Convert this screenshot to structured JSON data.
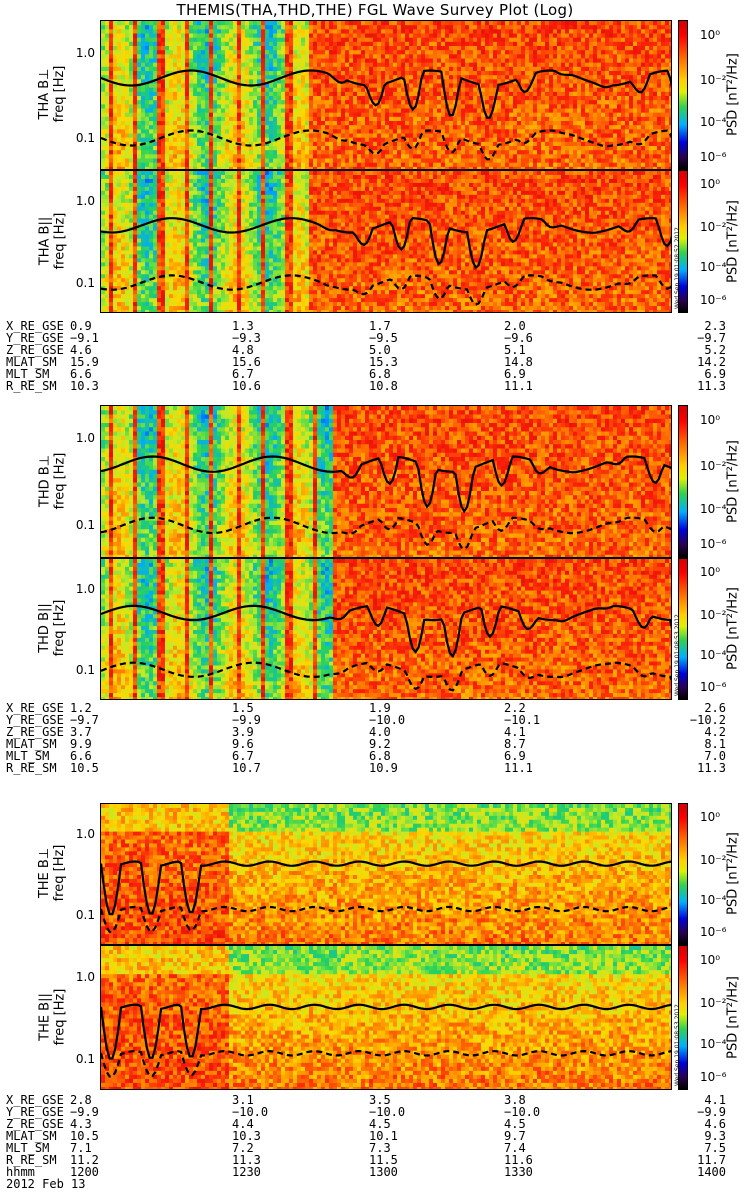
{
  "title": "THEMIS(THA,THD,THE) FGL Wave Survey Plot (Log)",
  "colorbar": {
    "label": "PSD [nT²/Hz]",
    "ticks": [
      "10⁰",
      "10⁻²",
      "10⁻⁴",
      "10⁻⁶"
    ]
  },
  "stamps": [
    "Wed Sep 19 01:08:52 2012",
    "Wed Sep 19 01:08:53 2012",
    "Wed Sep 19 01:08:53 2012"
  ],
  "chart_data": [
    {
      "type": "heatmap",
      "title": "THA B⊥",
      "ylabel": "freq [Hz]",
      "yscale": "log",
      "yticks": [
        "1.0",
        "0.1"
      ]
    },
    {
      "type": "heatmap",
      "title": "THA B||",
      "ylabel": "freq [Hz]",
      "yscale": "log",
      "yticks": [
        "1.0",
        "0.1"
      ]
    },
    {
      "type": "heatmap",
      "title": "THD B⊥",
      "ylabel": "freq [Hz]",
      "yscale": "log",
      "yticks": [
        "1.0",
        "0.1"
      ]
    },
    {
      "type": "heatmap",
      "title": "THD B||",
      "ylabel": "freq [Hz]",
      "yscale": "log",
      "yticks": [
        "1.0",
        "0.1"
      ]
    },
    {
      "type": "heatmap",
      "title": "THE B⊥",
      "ylabel": "freq [Hz]",
      "yscale": "log",
      "yticks": [
        "1.0",
        "0.1"
      ]
    },
    {
      "type": "heatmap",
      "title": "THE B||",
      "ylabel": "freq [Hz]",
      "yscale": "log",
      "yticks": [
        "1.0",
        "0.1"
      ]
    }
  ],
  "ephemeris": [
    {
      "rows": [
        {
          "label": "X_RE_GSE",
          "values": [
            "0.9",
            "1.3",
            "1.7",
            "2.0",
            "2.3"
          ]
        },
        {
          "label": "Y_RE_GSE",
          "values": [
            "−9.1",
            "−9.3",
            "−9.5",
            "−9.6",
            "−9.7"
          ]
        },
        {
          "label": "Z_RE_GSE",
          "values": [
            "4.6",
            "4.8",
            "5.0",
            "5.1",
            "5.2"
          ]
        },
        {
          "label": "MLAT_SM",
          "values": [
            "15.9",
            "15.6",
            "15.3",
            "14.8",
            "14.2"
          ]
        },
        {
          "label": "MLT_SM",
          "values": [
            "6.6",
            "6.7",
            "6.8",
            "6.9",
            "6.9"
          ]
        },
        {
          "label": "R_RE_SM",
          "values": [
            "10.3",
            "10.6",
            "10.8",
            "11.1",
            "11.3"
          ]
        }
      ]
    },
    {
      "rows": [
        {
          "label": "X_RE_GSE",
          "values": [
            "1.2",
            "1.5",
            "1.9",
            "2.2",
            "2.6"
          ]
        },
        {
          "label": "Y_RE_GSE",
          "values": [
            "−9.7",
            "−9.9",
            "−10.0",
            "−10.1",
            "−10.2"
          ]
        },
        {
          "label": "Z_RE_GSE",
          "values": [
            "3.7",
            "3.9",
            "4.0",
            "4.1",
            "4.2"
          ]
        },
        {
          "label": "MLAT_SM",
          "values": [
            "9.9",
            "9.6",
            "9.2",
            "8.7",
            "8.1"
          ]
        },
        {
          "label": "MLT_SM",
          "values": [
            "6.6",
            "6.7",
            "6.8",
            "6.9",
            "7.0"
          ]
        },
        {
          "label": "R_RE_SM",
          "values": [
            "10.5",
            "10.7",
            "10.9",
            "11.1",
            "11.3"
          ]
        }
      ]
    },
    {
      "rows": [
        {
          "label": "X_RE_GSE",
          "values": [
            "2.8",
            "3.1",
            "3.5",
            "3.8",
            "4.1"
          ]
        },
        {
          "label": "Y_RE_GSE",
          "values": [
            "−9.9",
            "−10.0",
            "−10.0",
            "−10.0",
            "−9.9"
          ]
        },
        {
          "label": "Z_RE_GSE",
          "values": [
            "4.3",
            "4.4",
            "4.5",
            "4.5",
            "4.6"
          ]
        },
        {
          "label": "MLAT_SM",
          "values": [
            "10.5",
            "10.3",
            "10.1",
            "9.7",
            "9.3"
          ]
        },
        {
          "label": "MLT_SM",
          "values": [
            "7.1",
            "7.2",
            "7.3",
            "7.4",
            "7.5"
          ]
        },
        {
          "label": "R_RE_SM",
          "values": [
            "11.2",
            "11.3",
            "11.5",
            "11.6",
            "11.7"
          ]
        },
        {
          "label": "hhmm",
          "values": [
            "1200",
            "1230",
            "1300",
            "1330",
            "1400"
          ]
        }
      ]
    }
  ],
  "date_label": "2012 Feb 13"
}
